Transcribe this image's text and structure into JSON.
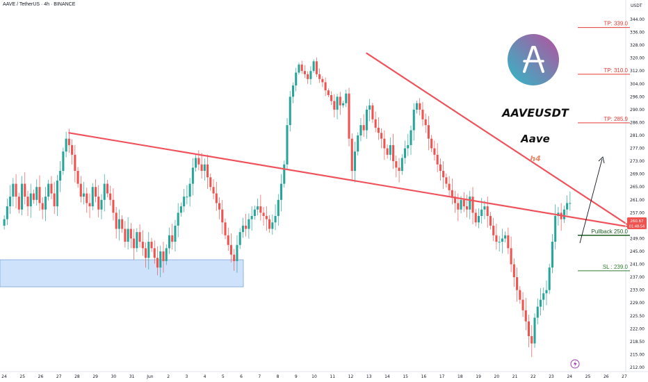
{
  "header": {
    "title": "AAVE / TetherUS · 4h · BINANCE",
    "currency": "USDT"
  },
  "info_panel": {
    "symbol": "AAVEUSDT",
    "name": "Aave",
    "timeframe": "h4",
    "logo_letter": "A"
  },
  "colors": {
    "up": "#26a69a",
    "down": "#ef5350",
    "trendline": "#f0525c",
    "tp": "#e53935",
    "sl": "#2e7d32",
    "pullback": "#1b5e20",
    "zone_fill": "#cfe2fb",
    "zone_border": "#7aa5d8"
  },
  "price_badge": {
    "price": "260.67",
    "countdown": "01:48:54"
  },
  "chart_data": {
    "type": "candlestick",
    "y_ticks": [
      "344.00",
      "336.00",
      "328.00",
      "320.00",
      "312.00",
      "304.00",
      "296.00",
      "290.00",
      "286.00",
      "281.00",
      "277.00",
      "273.00",
      "269.00",
      "265.00",
      "261.00",
      "257.00",
      "253.00",
      "249.00",
      "245.00",
      "241.00",
      "237.00",
      "233.00",
      "229.00",
      "225.50",
      "222.00",
      "218.50",
      "215.00",
      "212.00"
    ],
    "x_ticks": [
      "24",
      "25",
      "26",
      "27",
      "28",
      "29",
      "30",
      "31",
      "Jun",
      "2",
      "3",
      "4",
      "5",
      "6",
      "7",
      "8",
      "9",
      "10",
      "11",
      "12",
      "13",
      "14",
      "15",
      "16",
      "17",
      "18",
      "19",
      "20",
      "21",
      "22",
      "23",
      "24",
      "25",
      "26",
      "27"
    ],
    "levels": [
      {
        "label": "TP: 339.0",
        "price": 339.0,
        "kind": "tp"
      },
      {
        "label": "TP: 310.0",
        "price": 310.0,
        "kind": "tp"
      },
      {
        "label": "TP: 285.9",
        "price": 285.9,
        "kind": "tp"
      },
      {
        "label": "Pullback 250.0",
        "price": 250.0,
        "kind": "pullback"
      },
      {
        "label": "SL : 239.0",
        "price": 239.0,
        "kind": "sl"
      }
    ],
    "closes": [
      255,
      259,
      262,
      266,
      262,
      258,
      266,
      262,
      259,
      263,
      261,
      265,
      260,
      258,
      262,
      266,
      263,
      259,
      267,
      270,
      276,
      280,
      278,
      275,
      270,
      266,
      262,
      263,
      260,
      259,
      265,
      262,
      258,
      261,
      266,
      263,
      261,
      257,
      252,
      255,
      252,
      248,
      252,
      249,
      246,
      251,
      248,
      246,
      243,
      248,
      246,
      243,
      240,
      245,
      242,
      246,
      250,
      248,
      253,
      257,
      259,
      262,
      262,
      266,
      271,
      274,
      272,
      270,
      272,
      268,
      265,
      263,
      260,
      258,
      254,
      250,
      247,
      244,
      242,
      247,
      251,
      253,
      252,
      255,
      256,
      258,
      259,
      257,
      256,
      255,
      252,
      254,
      256,
      261,
      266,
      272,
      285,
      296,
      303,
      311,
      316,
      312,
      310,
      307,
      312,
      318,
      310,
      307,
      305,
      300,
      297,
      294,
      290,
      296,
      292,
      293,
      298,
      280,
      270,
      276,
      281,
      285,
      283,
      290,
      292,
      287,
      284,
      282,
      280,
      277,
      275,
      278,
      273,
      271,
      270,
      274,
      277,
      278,
      283,
      290,
      293,
      290,
      287,
      285,
      280,
      277,
      275,
      272,
      270,
      268,
      266,
      264,
      262,
      260,
      258,
      261,
      259,
      258,
      262,
      257,
      254,
      256,
      258,
      259,
      256,
      253,
      250,
      248,
      248,
      249,
      250,
      246,
      241,
      237,
      233,
      230,
      227,
      224,
      220,
      218,
      225,
      228,
      230,
      232,
      233,
      240,
      248,
      256,
      257,
      255,
      258,
      260,
      260
    ],
    "trendlines": [
      {
        "from": {
          "x_index": 22,
          "price": 282
        },
        "to": {
          "x_index": 211,
          "price": 252.5
        }
      },
      {
        "from": {
          "x_index": 123,
          "price": 323
        },
        "to": {
          "x_index": 211,
          "price": 252.5
        }
      }
    ],
    "demand_zone": {
      "from_index": 0,
      "to_index": 88,
      "top": 247,
      "bottom": 239
    }
  }
}
